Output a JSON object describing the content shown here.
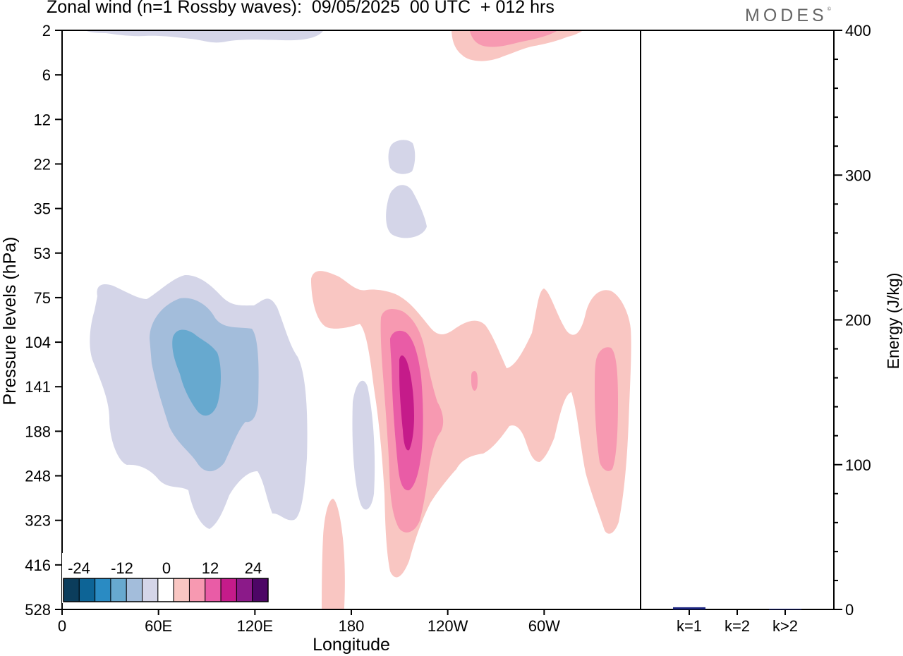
{
  "title": "Zonal wind (n=1 Rossby waves):  09/05/2025  00 UTC  + 012 hrs",
  "brand": "MODES",
  "brand_mark": "©",
  "chart_data": [
    {
      "type": "heatmap",
      "xlabel": "Longitude",
      "ylabel": "Pressure levels (hPa)",
      "x_ticks": [
        "0",
        "60E",
        "120E",
        "180",
        "120W",
        "60W"
      ],
      "x_tick_values": [
        0,
        60,
        120,
        180,
        240,
        300
      ],
      "xlim": [
        0,
        360
      ],
      "y_ticks": [
        "2",
        "6",
        "12",
        "22",
        "35",
        "53",
        "75",
        "104",
        "141",
        "188",
        "248",
        "323",
        "416",
        "528"
      ],
      "y_axis_inverted": true,
      "colorbar_ticks": [
        "-24",
        "-12",
        "0",
        "12",
        "24"
      ],
      "colorbar_levels": [
        -30,
        -25,
        -20,
        -15,
        -10,
        -5,
        5,
        10,
        15,
        20,
        25,
        30
      ],
      "colors": [
        "#0b3d5c",
        "#0d6496",
        "#2a8bc3",
        "#67a9cf",
        "#a3bddb",
        "#d4d5e8",
        "#ffffff",
        "#f9c6c2",
        "#f799b1",
        "#e95ca6",
        "#c51b8a",
        "#8b1a89",
        "#4d0666"
      ],
      "features": [
        {
          "sign": "negative",
          "peak": -15,
          "lon_range": [
            10,
            152
          ],
          "levels": "75-323 hPa"
        },
        {
          "sign": "negative",
          "peak": -5,
          "lon_range": [
            18,
            165
          ],
          "levels": "2 hPa"
        },
        {
          "sign": "negative",
          "peak": -5,
          "lon_range": [
            202,
            209
          ],
          "levels": "22-53 hPa"
        },
        {
          "sign": "negative",
          "peak": -5,
          "lon_range": [
            180,
            187
          ],
          "levels": "141-323 hPa"
        },
        {
          "sign": "positive",
          "peak": 20,
          "lon_range": [
            155,
            355
          ],
          "levels": "53-416 hPa"
        },
        {
          "sign": "positive",
          "peak": 10,
          "lon_range": [
            233,
            312
          ],
          "levels": "2 hPa"
        },
        {
          "sign": "positive",
          "peak": 5,
          "lon_range": [
            163,
            176
          ],
          "levels": "323-528 hPa"
        }
      ]
    },
    {
      "type": "bar",
      "ylabel": "Energy (J/kg)",
      "categories": [
        "k=1",
        "k=2",
        "k>2"
      ],
      "values": [
        1.5,
        0,
        0.5
      ],
      "ylim": [
        0,
        400
      ],
      "y_ticks": [
        "0",
        "100",
        "200",
        "300",
        "400"
      ],
      "bar_color": "#1a237e"
    }
  ]
}
